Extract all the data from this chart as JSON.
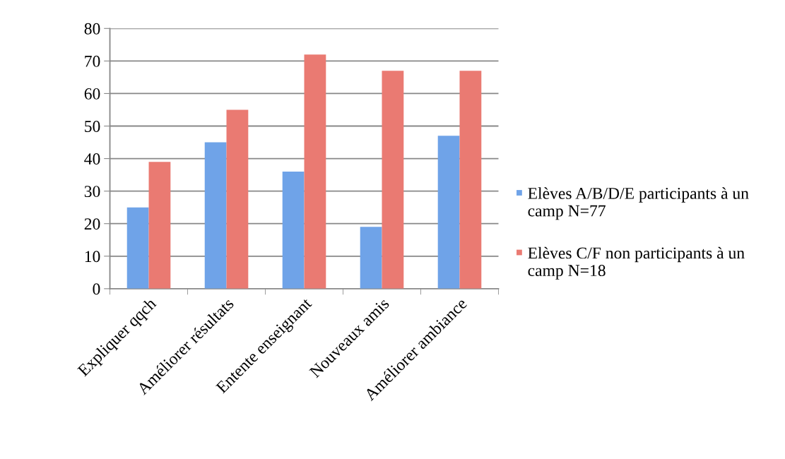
{
  "chart_data": {
    "type": "bar",
    "categories": [
      "Expliquer qqch",
      "Améliorer résultats",
      "Entente enseignant",
      "Nouveaux amis",
      "Améliorer ambiance"
    ],
    "series": [
      {
        "name": "Elèves A/B/D/E participants à un camp N=77",
        "color": "#6fa3e8",
        "values": [
          25,
          45,
          36,
          19,
          47
        ]
      },
      {
        "name": "Elèves C/F non participants à un camp N=18",
        "color": "#ea7a72",
        "values": [
          39,
          55,
          72,
          67,
          67
        ]
      }
    ],
    "ylim": [
      0,
      80
    ],
    "yticks": [
      0,
      10,
      20,
      30,
      40,
      50,
      60,
      70,
      80
    ],
    "grid": "y",
    "legend": "right"
  }
}
